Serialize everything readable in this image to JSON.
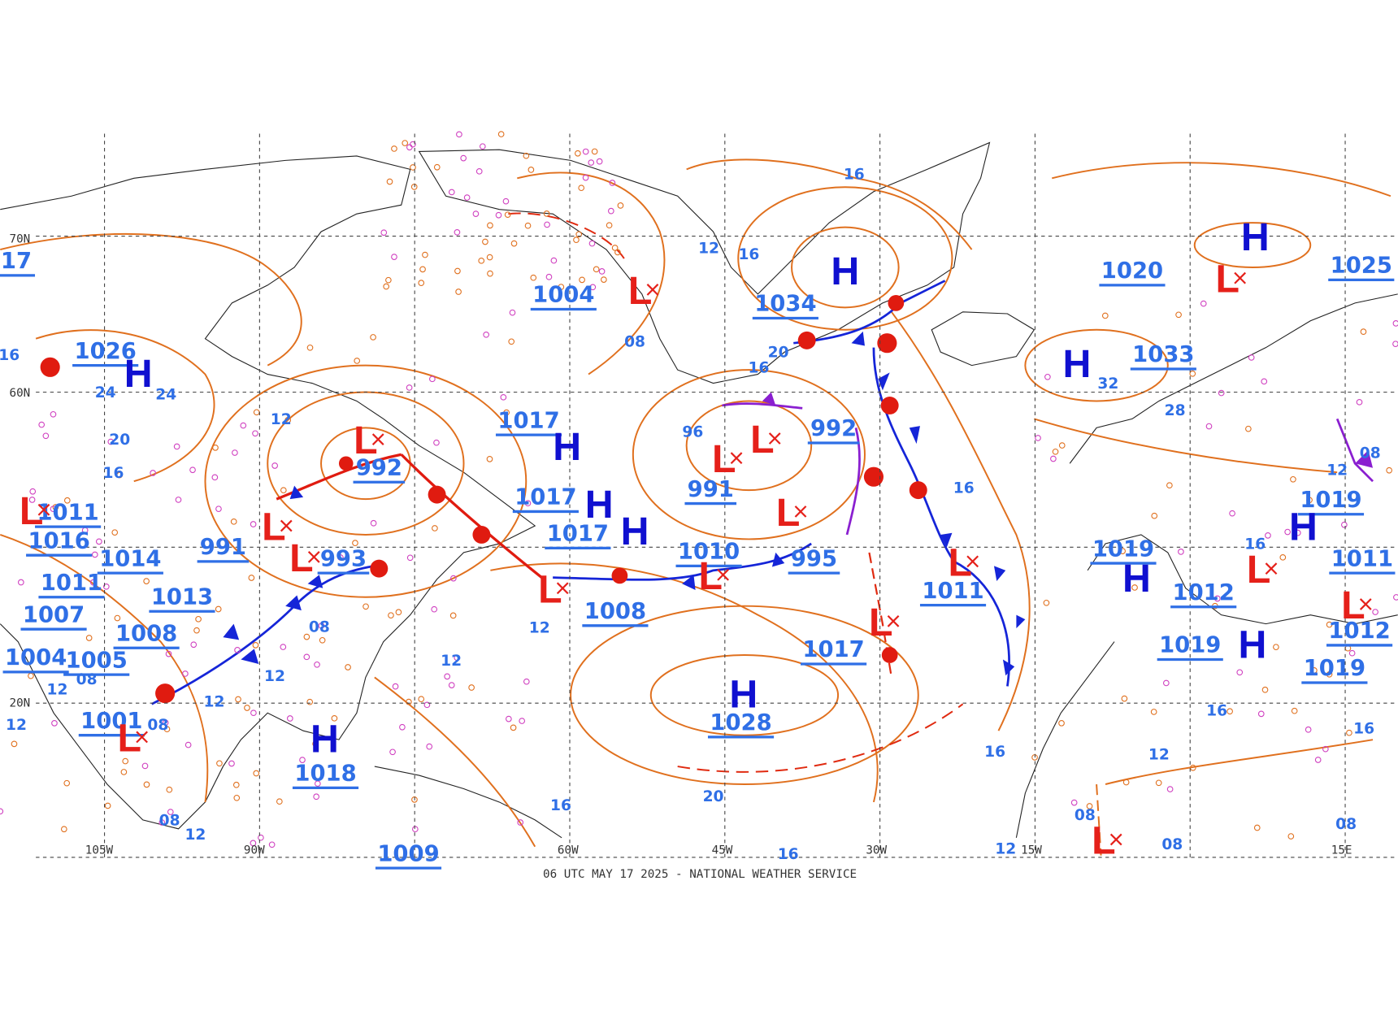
{
  "map": {
    "symbols": [
      "H",
      "H",
      "H",
      "H",
      "H",
      "H",
      "H",
      "H",
      "H",
      "H",
      "H",
      "H",
      "L",
      "L",
      "L",
      "L",
      "L",
      "L",
      "L",
      "L",
      "L",
      "L",
      "L",
      "L",
      "L",
      "L",
      "L",
      "L",
      "L"
    ],
    "pressure_labels": [
      "1004",
      "1020",
      "1025",
      "1034",
      "1026",
      "17",
      "1033",
      "1017",
      "992",
      "992",
      "1017",
      "1017",
      "991",
      "1011",
      "1016",
      "1014",
      "991",
      "993",
      "1010",
      "995",
      "1011",
      "1019",
      "1019",
      "1011",
      "1012",
      "1012",
      "1011",
      "1013",
      "1007",
      "1008",
      "1008",
      "1017",
      "1019",
      "1019",
      "1004",
      "1005",
      "1028",
      "1001",
      "1018",
      "1009"
    ],
    "isobar_labels": [
      "16",
      "12",
      "16",
      "16",
      "20",
      "08",
      "96",
      "16",
      "24",
      "24",
      "20",
      "16",
      "16",
      "12",
      "08",
      "12",
      "12",
      "12",
      "12",
      "08",
      "08",
      "12",
      "12",
      "28",
      "32",
      "12",
      "08",
      "16",
      "16",
      "12",
      "16",
      "16",
      "08",
      "08",
      "12",
      "08",
      "20",
      "16",
      "16",
      "08",
      "12"
    ],
    "longitudes": [
      "105W",
      "90W",
      "60W",
      "45W",
      "30W",
      "15W",
      "15E"
    ],
    "latitudes": [
      "70N",
      "60N",
      "20N"
    ],
    "footer": "06 UTC MAY 17 2025 - NATIONAL WEATHER SERVICE"
  }
}
